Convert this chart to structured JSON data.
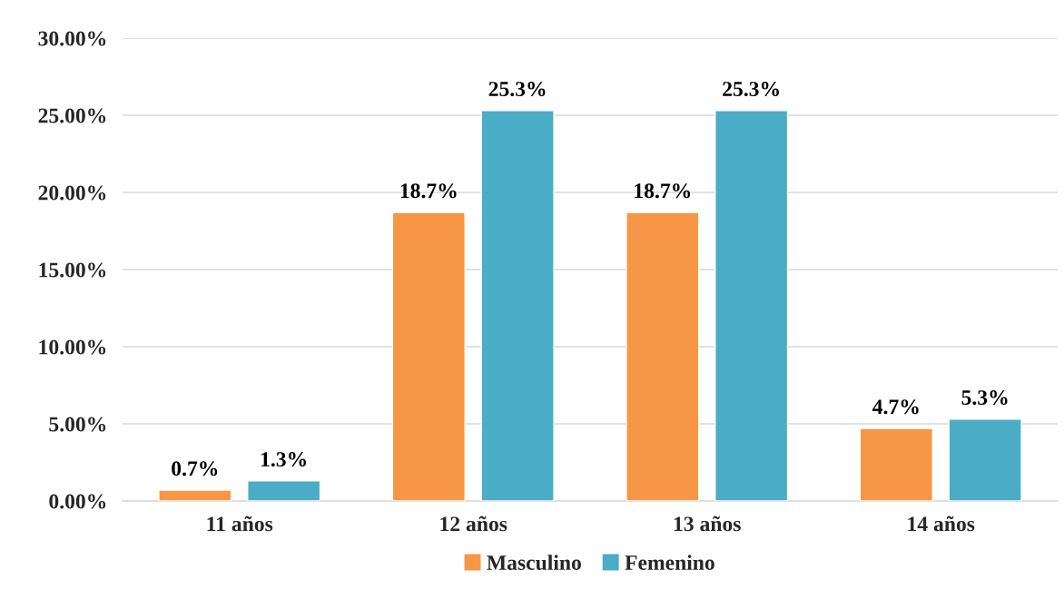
{
  "chart_data": {
    "type": "bar",
    "categories": [
      "11 años",
      "12 años",
      "13 años",
      "14 años"
    ],
    "series": [
      {
        "name": "Masculino",
        "color": "#f79646",
        "values": [
          0.7,
          18.7,
          18.7,
          4.7
        ],
        "value_labels": [
          "0.7%",
          "18.7%",
          "18.7%",
          "4.7%"
        ]
      },
      {
        "name": "Femenino",
        "color": "#4bacc6",
        "values": [
          1.3,
          25.3,
          25.3,
          5.3
        ],
        "value_labels": [
          "1.3%",
          "25.3%",
          "25.3%",
          "5.3%"
        ]
      }
    ],
    "ylim": [
      0,
      30
    ],
    "yticks": [
      {
        "value": 0,
        "label": "0.00%"
      },
      {
        "value": 5,
        "label": "5.00%"
      },
      {
        "value": 10,
        "label": "10.00%"
      },
      {
        "value": 15,
        "label": "15.00%"
      },
      {
        "value": 20,
        "label": "20.00%"
      },
      {
        "value": 25,
        "label": "25.00%"
      },
      {
        "value": 30,
        "label": "30.00%"
      }
    ],
    "grid": "y",
    "legend": "bottom"
  }
}
